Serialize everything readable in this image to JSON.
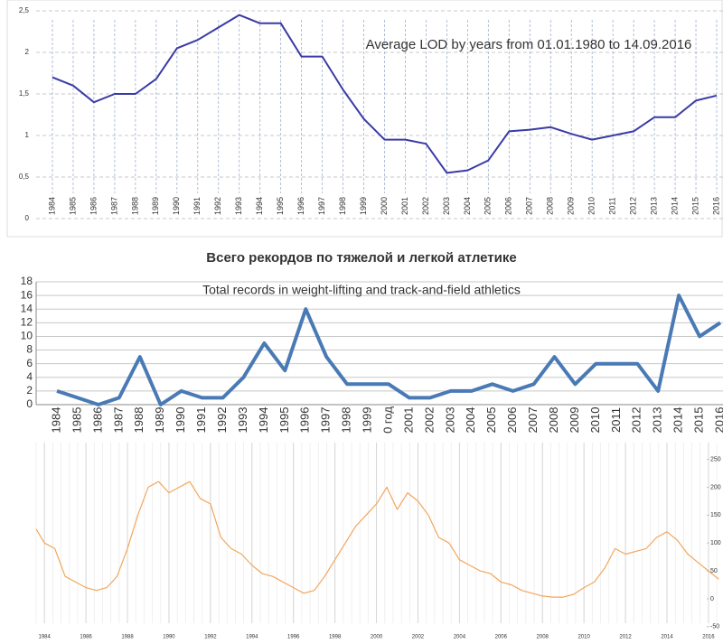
{
  "chart_data": [
    {
      "type": "line",
      "title": "Average LOD by years from 01.01.1980 to 14.09.2016",
      "categories": [
        "1984",
        "1985",
        "1986",
        "1987",
        "1988",
        "1989",
        "1990",
        "1991",
        "1992",
        "1993",
        "1994",
        "1995",
        "1996",
        "1997",
        "1998",
        "1999",
        "2000",
        "2001",
        "2002",
        "2003",
        "2004",
        "2005",
        "2006",
        "2007",
        "2008",
        "2009",
        "2010",
        "2011",
        "2012",
        "2013",
        "2014",
        "2015",
        "2016"
      ],
      "series": [
        {
          "color": "#3a3aa6",
          "values": [
            1.7,
            1.6,
            1.4,
            1.5,
            1.5,
            1.68,
            2.05,
            2.15,
            2.3,
            2.45,
            2.35,
            2.35,
            1.95,
            1.95,
            1.55,
            1.2,
            0.95,
            0.95,
            0.9,
            0.55,
            0.58,
            0.7,
            1.05,
            1.07,
            1.1,
            1.02,
            0.95,
            1.0,
            1.05,
            1.22,
            1.22,
            1.42,
            1.48
          ]
        }
      ],
      "ylim": [
        0,
        2.5
      ],
      "yticks": [
        0,
        {
          "value": 0.5,
          "label": "0,5"
        },
        1,
        {
          "value": 1.5,
          "label": "1,5"
        },
        2,
        {
          "value": 2.5,
          "label": "2,5"
        }
      ],
      "grid": true
    },
    {
      "type": "line",
      "title": "Всего рекордов по тяжелой и легкой атлетике",
      "subtitle": "Total records in weight-lifting and track-and-field athletics",
      "categories": [
        "1984",
        "1985",
        "1986",
        "1987",
        "1988",
        "1989",
        "1990",
        "1991",
        "1992",
        "1993",
        "1994",
        "1995",
        "1996",
        "1997",
        "1998",
        "1999",
        "0 год",
        "2001",
        "2002",
        "2003",
        "2004",
        "2005",
        "2006",
        "2007",
        "2008",
        "2009",
        "2010",
        "2011",
        "2012",
        "2013",
        "2014",
        "2015",
        "2016"
      ],
      "series": [
        {
          "color": "#4a7ab5",
          "values": [
            2,
            1,
            0,
            1,
            7,
            0,
            2,
            1,
            1,
            4,
            9,
            5,
            14,
            7,
            3,
            3,
            3,
            1,
            1,
            2,
            2,
            3,
            2,
            3,
            7,
            3,
            6,
            6,
            6,
            2,
            16,
            10,
            12
          ]
        }
      ],
      "ylim": [
        0,
        18
      ],
      "yticks": [
        0,
        2,
        4,
        6,
        8,
        10,
        12,
        14,
        16,
        18
      ],
      "grid": true
    },
    {
      "type": "line",
      "x": [
        1983.6,
        1984,
        1984.5,
        1985,
        1985.5,
        1986,
        1986.5,
        1987,
        1987.5,
        1988,
        1988.5,
        1989,
        1989.5,
        1990,
        1990.5,
        1991,
        1991.5,
        1992,
        1992.5,
        1993,
        1993.5,
        1994,
        1994.5,
        1995,
        1995.5,
        1996,
        1996.5,
        1997,
        1997.5,
        1998,
        1998.5,
        1999,
        1999.5,
        2000,
        2000.5,
        2001,
        2001.5,
        2002,
        2002.5,
        2003,
        2003.5,
        2004,
        2004.5,
        2005,
        2005.5,
        2006,
        2006.5,
        2007,
        2007.5,
        2008,
        2008.5,
        2009,
        2009.5,
        2010,
        2010.5,
        2011,
        2011.5,
        2012,
        2012.5,
        2013,
        2013.5,
        2014,
        2014.5,
        2015,
        2015.5,
        2016,
        2016.5
      ],
      "series": [
        {
          "color": "#f2a65a",
          "values": [
            125,
            100,
            90,
            40,
            30,
            20,
            15,
            20,
            40,
            90,
            150,
            200,
            210,
            190,
            200,
            210,
            180,
            170,
            110,
            90,
            80,
            60,
            45,
            40,
            30,
            20,
            10,
            15,
            40,
            70,
            100,
            130,
            150,
            170,
            200,
            160,
            190,
            175,
            150,
            110,
            100,
            70,
            60,
            50,
            45,
            30,
            25,
            15,
            10,
            5,
            3,
            3,
            8,
            20,
            30,
            55,
            90,
            80,
            85,
            90,
            110,
            120,
            105,
            80,
            65,
            50,
            35
          ]
        }
      ],
      "xlim": [
        1983.6,
        2016.7
      ],
      "xticks": [
        1984,
        1986,
        1988,
        1990,
        1992,
        1994,
        1996,
        1998,
        2000,
        2002,
        2004,
        2006,
        2008,
        2010,
        2012,
        2014,
        2016
      ],
      "ylim": [
        -60,
        280
      ],
      "yticks": [
        -50,
        0,
        50,
        100,
        150,
        200,
        250
      ],
      "grid": true
    }
  ]
}
